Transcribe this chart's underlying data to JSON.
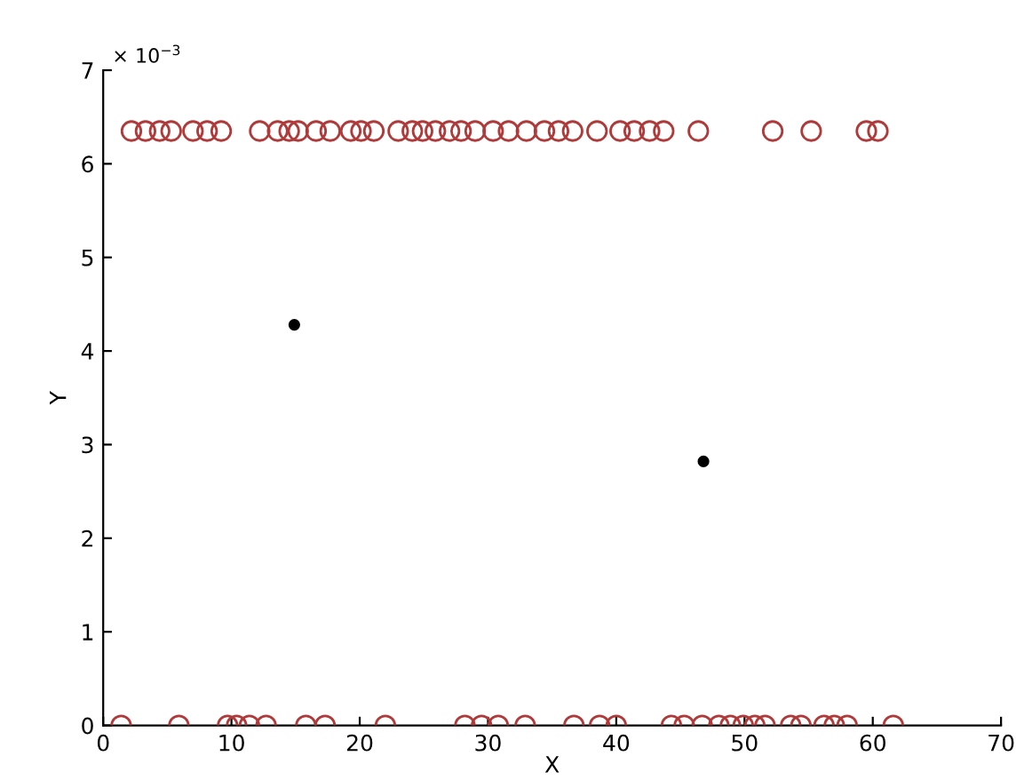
{
  "chart_data": {
    "type": "scatter",
    "xlabel": "X",
    "ylabel": "Y",
    "annotations": [
      "× 10$^{−3}$"
    ],
    "xlim": [
      0,
      70
    ],
    "xticks": [
      0,
      10,
      20,
      30,
      40,
      50,
      60,
      70
    ],
    "ylim": [
      0,
      7
    ],
    "yticks": [
      0,
      1,
      2,
      3,
      4,
      5,
      6,
      7
    ],
    "grid": false,
    "series": [
      {
        "color": "#b03a3a",
        "marker": "circle",
        "x": [
          2.2,
          3.3,
          4.4,
          5.3,
          7.0,
          8.1,
          9.2,
          12.2,
          13.6,
          14.5,
          15.2,
          16.6,
          17.7,
          19.3,
          20.1,
          21.1,
          23,
          24.1,
          24.9,
          25.9,
          27,
          27.9,
          29,
          30.4,
          31.6,
          33,
          34.4,
          35.5,
          36.6,
          38.5,
          40.3,
          41.4,
          42.6,
          43.7,
          46.4,
          52.2,
          55.2,
          59.5,
          60.4
        ],
        "values": [
          6.35,
          6.35,
          6.35,
          6.35,
          6.35,
          6.35,
          6.35,
          6.35,
          6.35,
          6.35,
          6.35,
          6.35,
          6.35,
          6.35,
          6.35,
          6.35,
          6.35,
          6.35,
          6.35,
          6.35,
          6.35,
          6.35,
          6.35,
          6.35,
          6.35,
          6.35,
          6.35,
          6.35,
          6.35,
          6.35,
          6.35,
          6.35,
          6.35,
          6.35,
          6.35,
          6.35,
          6.35,
          6.35,
          6.35
        ]
      },
      {
        "color": "#b03a3a",
        "marker": "circle",
        "x": [
          1.4,
          5.9,
          9.7,
          10.4,
          11.4,
          12.7,
          15.8,
          17.3,
          22,
          28.2,
          29.5,
          30.8,
          32.9,
          36.7,
          38.7,
          40,
          44.3,
          45.3,
          46.7,
          48,
          48.9,
          49.9,
          50.8,
          51.6,
          53.6,
          54.4,
          56.2,
          57,
          58,
          61.6
        ],
        "values": [
          0,
          0,
          0,
          0,
          0,
          0,
          0,
          0,
          0,
          0,
          0,
          0,
          0,
          0,
          0,
          0,
          0,
          0,
          0,
          0,
          0,
          0,
          0,
          0,
          0,
          0,
          0,
          0,
          0,
          0
        ]
      },
      {
        "color": "#000000",
        "marker": "circle",
        "x": [
          14.9,
          46.8
        ],
        "values": [
          4.28,
          2.82
        ]
      }
    ]
  }
}
